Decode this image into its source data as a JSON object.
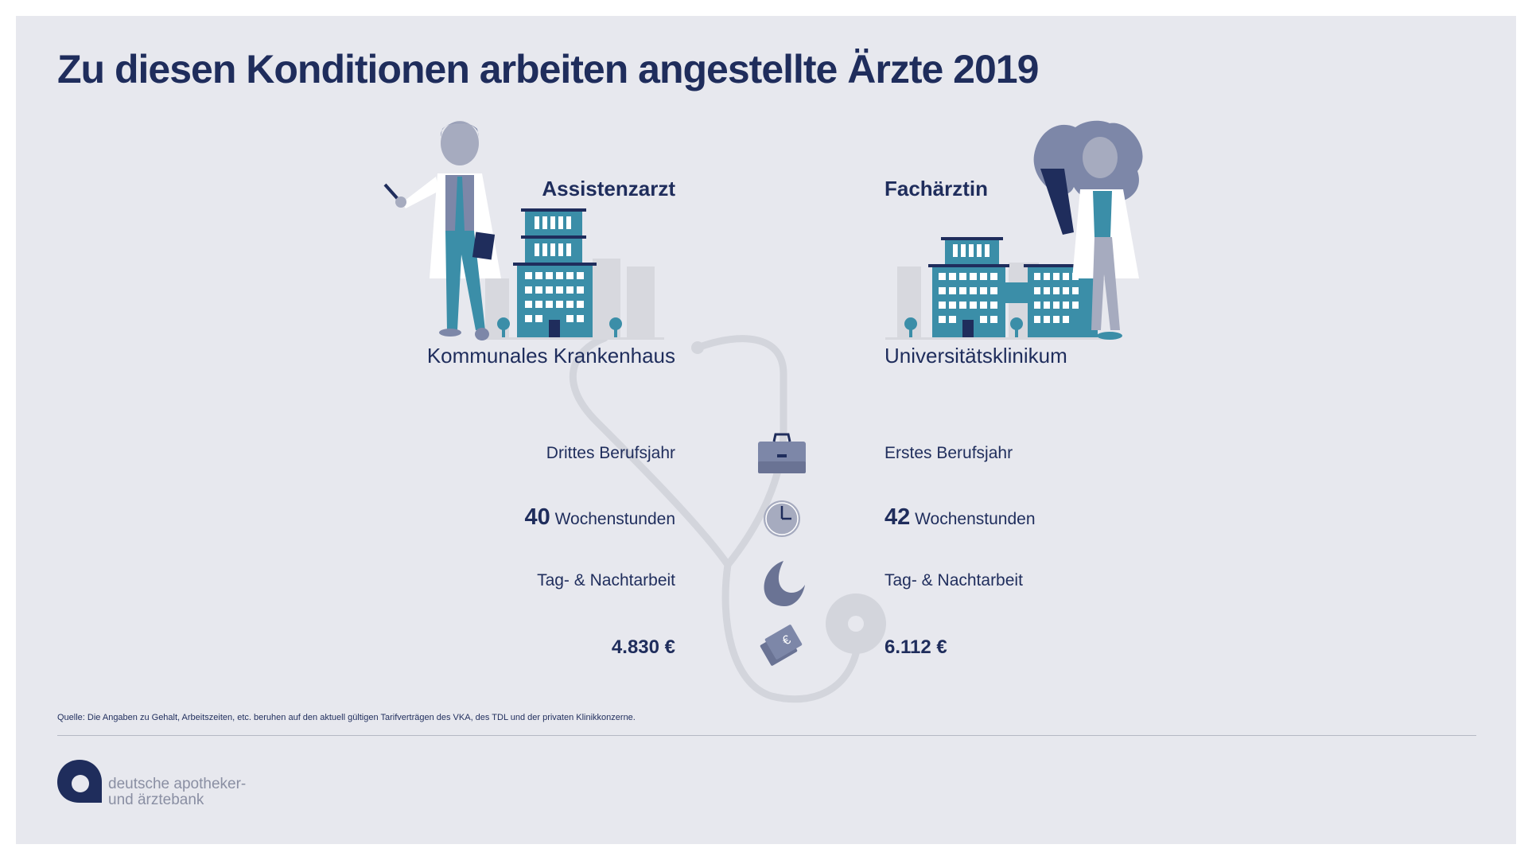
{
  "title": "Zu diesen Konditionen arbeiten angestellte Ärzte 2019",
  "left": {
    "role": "Assistenzarzt",
    "place": "Kommunales Krankenhaus",
    "experience": "Drittes Berufsjahr",
    "hours_value": "40",
    "hours_unit": "Wochenstunden",
    "shift": "Tag- & Nachtarbeit",
    "salary": "4.830 €"
  },
  "right": {
    "role": "Fachärztin",
    "place": "Universitätsklinikum",
    "experience": "Erstes Berufsjahr",
    "hours_value": "42",
    "hours_unit": "Wochenstunden",
    "shift": "Tag- & Nachtarbeit",
    "salary": "6.112 €"
  },
  "icons": [
    "briefcase-icon",
    "clock-icon",
    "moon-icon",
    "money-icon",
    "stethoscope-icon"
  ],
  "source": "Quelle: Die Angaben zu Gehalt, Arbeitszeiten, etc. beruhen auf den aktuell gültigen Tarifverträgen des VKA, des TDL und der privaten Klinikkonzerne.",
  "brand": {
    "line1": "deutsche apotheker-",
    "line2": "und ärztebank"
  },
  "colors": {
    "navy": "#1f2d5c",
    "teal": "#3b8ea8",
    "slate": "#7d87a8",
    "light_gray": "#d7d8de",
    "background": "#e7e8ee"
  }
}
